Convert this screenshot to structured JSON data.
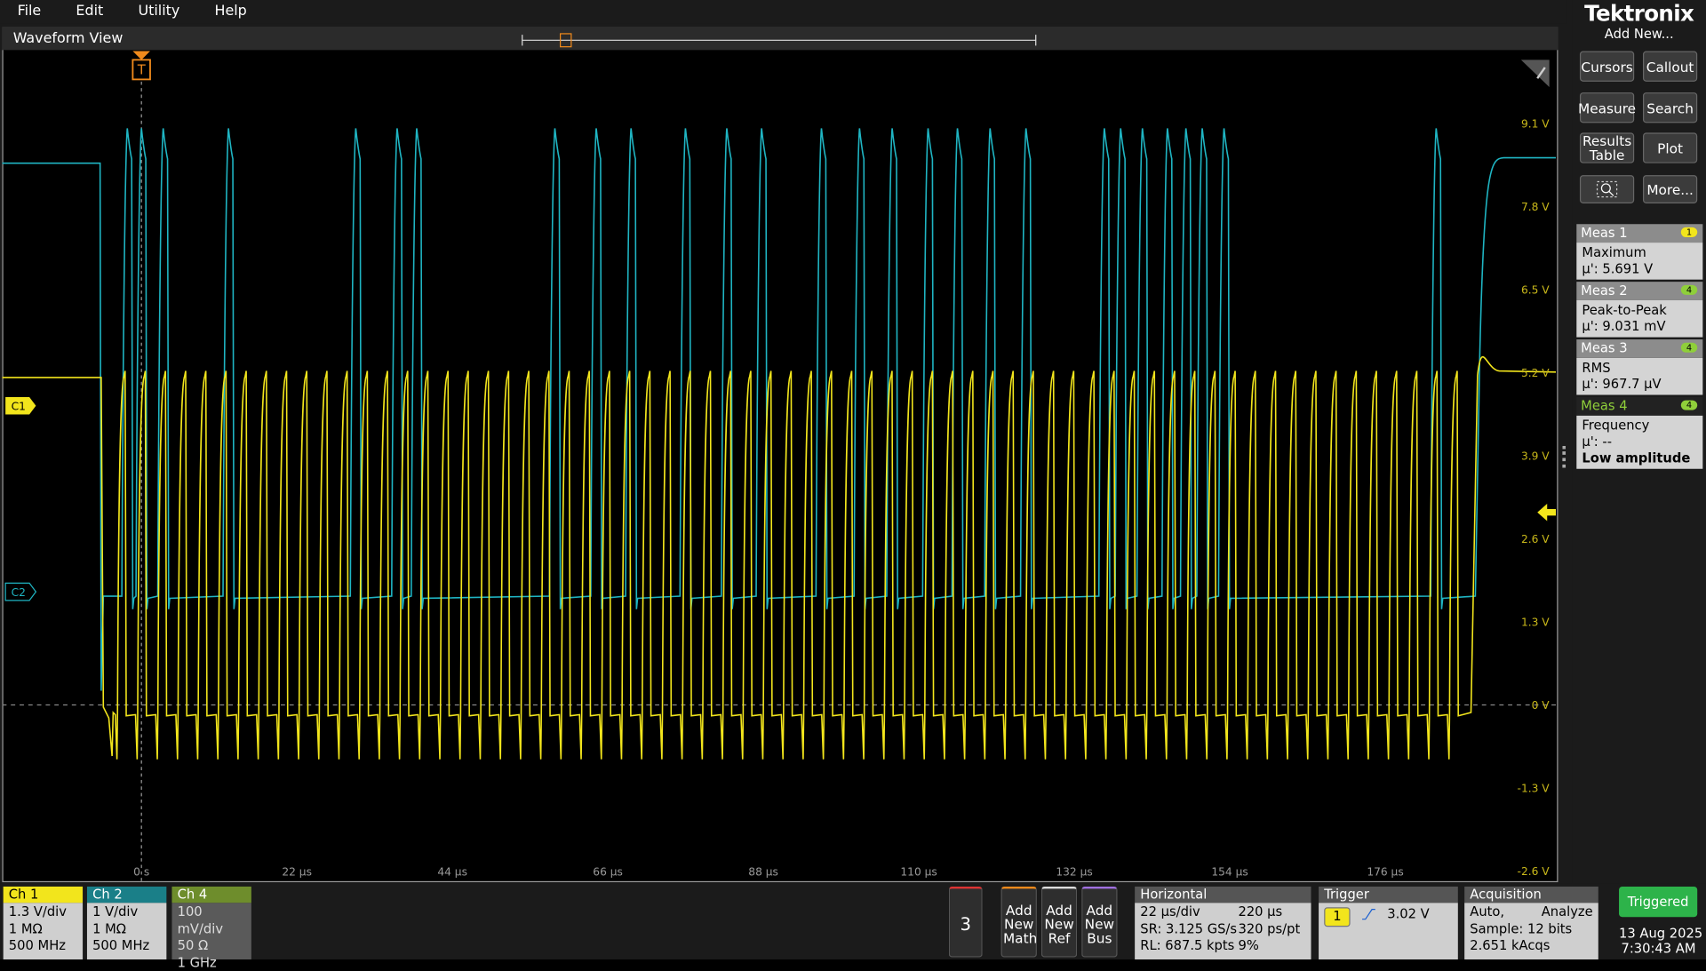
{
  "menu": [
    "File",
    "Edit",
    "Utility",
    "Help"
  ],
  "brand": {
    "logo": "Tektronix",
    "add_new": "Add New..."
  },
  "waveform_view": {
    "title": "Waveform View",
    "trigger_marker": "T",
    "y_labels": [
      "9.1 V",
      "7.8 V",
      "6.5 V",
      "5.2 V",
      "3.9 V",
      "2.6 V",
      "1.3 V",
      "0 V",
      "-1.3 V",
      "-2.6 V"
    ],
    "x_labels": [
      "0 s",
      "22 µs",
      "44 µs",
      "66 µs",
      "88 µs",
      "110 µs",
      "132 µs",
      "154 µs",
      "176 µs"
    ],
    "channel_markers": [
      "C1",
      "C2"
    ]
  },
  "buttons": [
    "Cursors",
    "Callout",
    "Measure",
    "Search",
    "Results Table",
    "Plot",
    "More..."
  ],
  "measurements": [
    {
      "name": "Meas 1",
      "badge": "1",
      "type": "Maximum",
      "value": "µ': 5.691 V"
    },
    {
      "name": "Meas 2",
      "badge": "4",
      "type": "Peak-to-Peak",
      "value": "µ': 9.031 mV"
    },
    {
      "name": "Meas 3",
      "badge": "4",
      "type": "RMS",
      "value": "µ': 967.7 µV"
    },
    {
      "name": "Meas 4",
      "badge": "4",
      "type": "Frequency",
      "value": "µ': --",
      "note": "Low amplitude"
    }
  ],
  "channels": [
    {
      "name": "Ch 1",
      "lines": [
        "1.3 V/div",
        "1 MΩ",
        "500 MHz"
      ]
    },
    {
      "name": "Ch 2",
      "lines": [
        "1 V/div",
        "1 MΩ",
        "500 MHz"
      ]
    },
    {
      "name": "Ch 4",
      "lines": [
        "100 mV/div",
        "50 Ω",
        "1 GHz"
      ]
    }
  ],
  "add": {
    "count": "3",
    "buttons": [
      "Add New Math",
      "Add New Ref",
      "Add New Bus"
    ]
  },
  "horizontal": {
    "title": "Horizontal",
    "rows": [
      [
        "22 µs/div",
        "220 µs"
      ],
      [
        "SR: 3.125 GS/s",
        "320 ps/pt"
      ],
      [
        "RL: 687.5 kpts",
        "9%"
      ]
    ]
  },
  "trigger": {
    "title": "Trigger",
    "source": "1",
    "level": "3.02 V"
  },
  "acquisition": {
    "title": "Acquisition",
    "rows": [
      [
        "Auto,",
        "Analyze"
      ],
      [
        "Sample: 12 bits"
      ],
      [
        "2.651 kAcqs"
      ]
    ]
  },
  "status": {
    "state": "Triggered",
    "date": "13 Aug 2025",
    "time": "7:30:43 AM"
  }
}
